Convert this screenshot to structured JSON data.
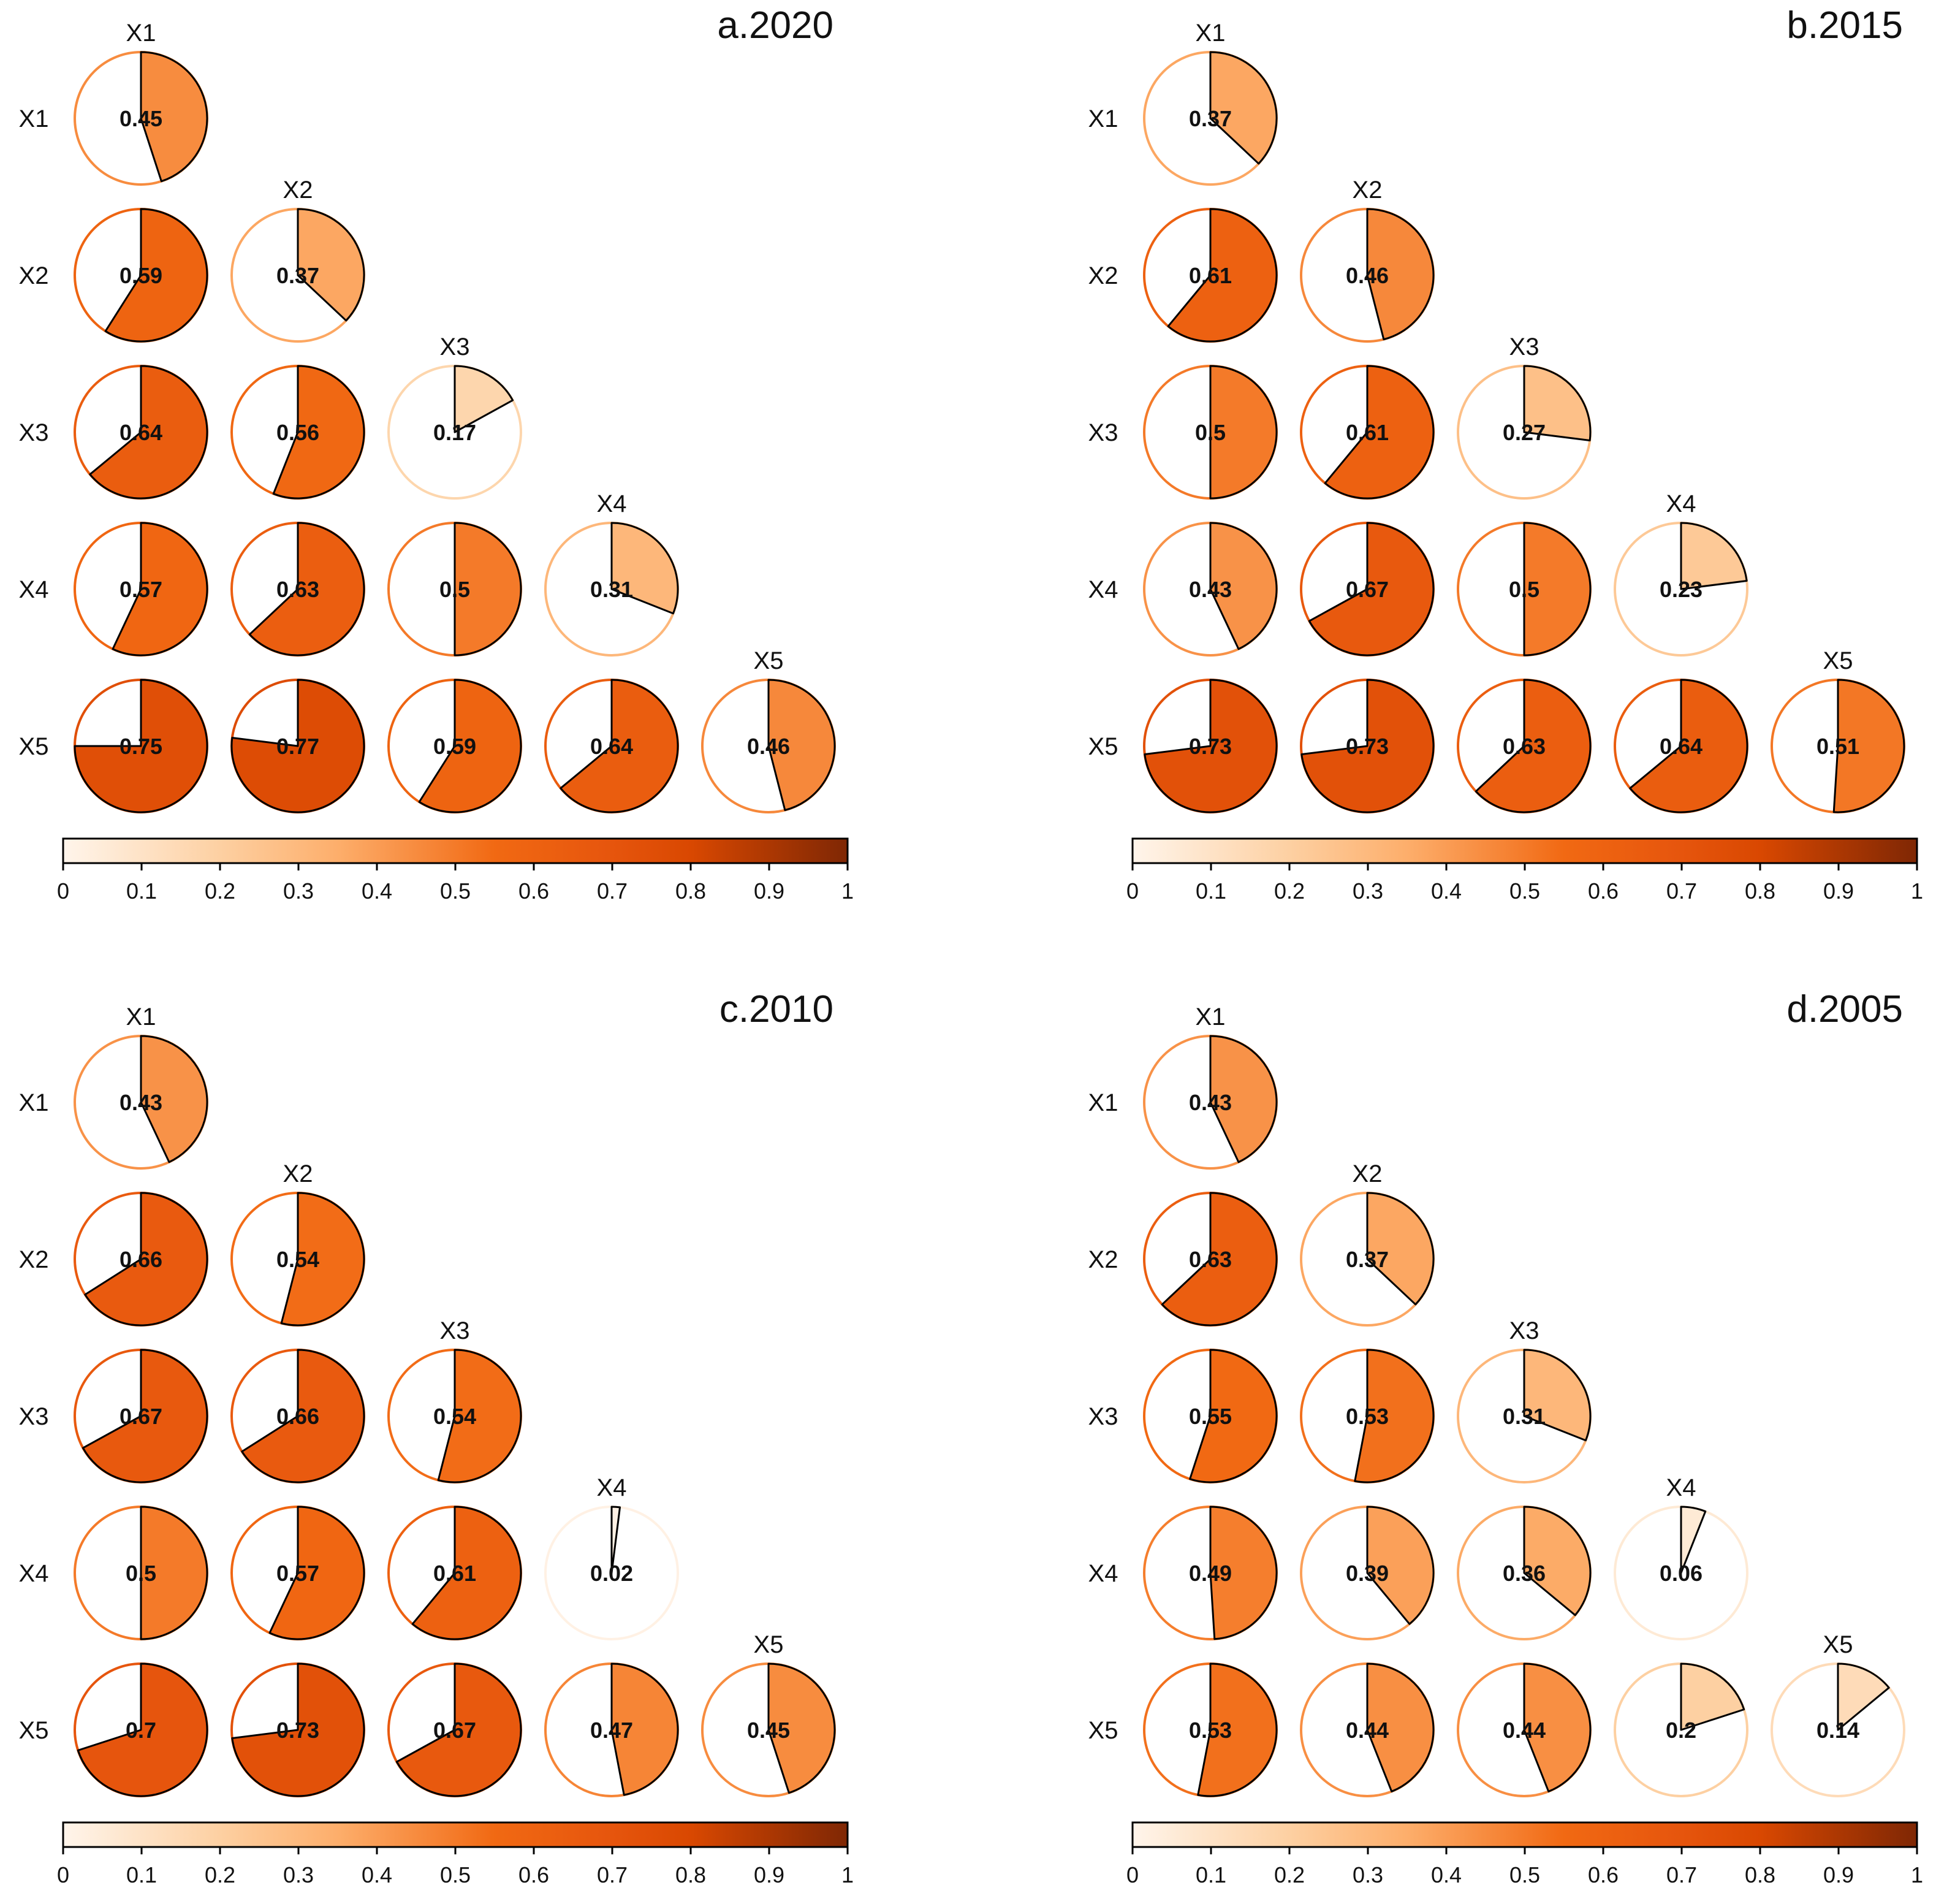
{
  "chart_data": {
    "type": "pie",
    "description_kind": "correlation matrix of pie glyphs",
    "variables": [
      "X1",
      "X2",
      "X3",
      "X4",
      "X5"
    ],
    "colorbar": {
      "min": 0,
      "max": 1,
      "ticks": [
        "0",
        "0.1",
        "0.2",
        "0.3",
        "0.4",
        "0.5",
        "0.6",
        "0.7",
        "0.8",
        "0.9",
        "1"
      ],
      "stops": [
        "#fff5eb",
        "#fdd0a2",
        "#fdae6b",
        "#f16913",
        "#e6550d",
        "#d94801",
        "#7f2704"
      ]
    },
    "panels": [
      {
        "title": "a.2020",
        "matrix": [
          [
            0.45
          ],
          [
            0.59,
            0.37
          ],
          [
            0.64,
            0.56,
            0.17
          ],
          [
            0.57,
            0.63,
            0.5,
            0.31
          ],
          [
            0.75,
            0.77,
            0.59,
            0.64,
            0.46
          ]
        ],
        "labels": [
          [
            "0.45"
          ],
          [
            "0.59",
            "0.37"
          ],
          [
            "0.64",
            "0.56",
            "0.17"
          ],
          [
            "0.57",
            "0.63",
            "0.5",
            "0.31"
          ],
          [
            "0.75",
            "0.77",
            "0.59",
            "0.64",
            "0.46"
          ]
        ]
      },
      {
        "title": "b.2015",
        "matrix": [
          [
            0.37
          ],
          [
            0.61,
            0.46
          ],
          [
            0.5,
            0.61,
            0.27
          ],
          [
            0.43,
            0.67,
            0.5,
            0.23
          ],
          [
            0.73,
            0.73,
            0.63,
            0.64,
            0.51
          ]
        ],
        "labels": [
          [
            "0.37"
          ],
          [
            "0.61",
            "0.46"
          ],
          [
            "0.5",
            "0.61",
            "0.27"
          ],
          [
            "0.43",
            "0.67",
            "0.5",
            "0.23"
          ],
          [
            "0.73",
            "0.73",
            "0.63",
            "0.64",
            "0.51"
          ]
        ]
      },
      {
        "title": "c.2010",
        "matrix": [
          [
            0.43
          ],
          [
            0.66,
            0.54
          ],
          [
            0.67,
            0.66,
            0.54
          ],
          [
            0.5,
            0.57,
            0.61,
            0.02
          ],
          [
            0.7,
            0.73,
            0.67,
            0.47,
            0.45
          ]
        ],
        "labels": [
          [
            "0.43"
          ],
          [
            "0.66",
            "0.54"
          ],
          [
            "0.67",
            "0.66",
            "0.54"
          ],
          [
            "0.5",
            "0.57",
            "0.61",
            "0.02"
          ],
          [
            "0.7",
            "0.73",
            "0.67",
            "0.47",
            "0.45"
          ]
        ]
      },
      {
        "title": "d.2005",
        "matrix": [
          [
            0.43
          ],
          [
            0.63,
            0.37
          ],
          [
            0.55,
            0.53,
            0.31
          ],
          [
            0.49,
            0.39,
            0.36,
            0.06
          ],
          [
            0.53,
            0.44,
            0.44,
            0.2,
            0.14
          ]
        ],
        "labels": [
          [
            "0.43"
          ],
          [
            "0.63",
            "0.37"
          ],
          [
            "0.55",
            "0.53",
            "0.31"
          ],
          [
            "0.49",
            "0.39",
            "0.36",
            "0.06"
          ],
          [
            "0.53",
            "0.44",
            "0.44",
            "0.2",
            "0.14"
          ]
        ]
      }
    ]
  }
}
